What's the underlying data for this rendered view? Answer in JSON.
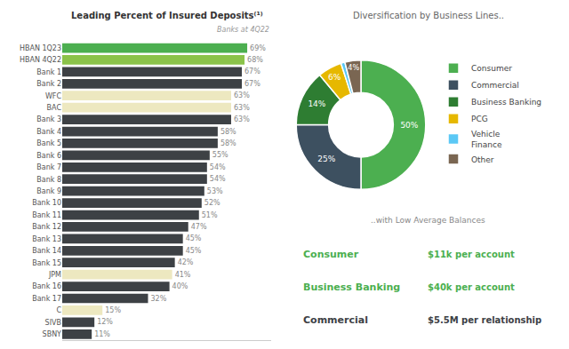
{
  "chart_data": [
    {
      "type": "bar",
      "title": "Leading Percent of Insured Deposits⁽¹⁾",
      "subtitle": "Banks at 4Q22",
      "orientation": "horizontal",
      "categories": [
        "HBAN 1Q23",
        "HBAN 4Q22",
        "Bank 1",
        "Bank 2",
        "WFC",
        "BAC",
        "Bank 3",
        "Bank 4",
        "Bank 5",
        "Bank 6",
        "Bank 7",
        "Bank 8",
        "Bank 9",
        "Bank 10",
        "Bank 11",
        "Bank 12",
        "Bank 13",
        "Bank 14",
        "Bank 15",
        "JPM",
        "Bank 16",
        "Bank 17",
        "C",
        "SIVB",
        "SBNY"
      ],
      "values": [
        69,
        68,
        67,
        67,
        63,
        63,
        63,
        58,
        58,
        55,
        54,
        54,
        53,
        52,
        51,
        47,
        45,
        45,
        42,
        41,
        40,
        32,
        15,
        12,
        11
      ],
      "value_labels": [
        "69%",
        "68%",
        "67%",
        "67%",
        "63%",
        "63%",
        "63%",
        "58%",
        "58%",
        "55%",
        "54%",
        "54%",
        "53%",
        "52%",
        "51%",
        "47%",
        "45%",
        "45%",
        "42%",
        "41%",
        "40%",
        "32%",
        "15%",
        "12%",
        "11%"
      ],
      "data_labels": true,
      "colors": [
        "#4caf50",
        "#8bc34a",
        "#3d4145",
        "#3d4145",
        "#ede8c0",
        "#ede8c0",
        "#3d4145",
        "#3d4145",
        "#3d4145",
        "#3d4145",
        "#3d4145",
        "#3d4145",
        "#3d4145",
        "#3d4145",
        "#3d4145",
        "#3d4145",
        "#3d4145",
        "#3d4145",
        "#3d4145",
        "#ede8c0",
        "#3d4145",
        "#3d4145",
        "#ede8c0",
        "#3d4145",
        "#3d4145"
      ],
      "xlim": [
        0,
        78
      ],
      "tick_labels": "y",
      "grid": false
    },
    {
      "type": "pie",
      "title": "Diversification by Business Lines..",
      "subtitle": "..with Low Average Balances",
      "categories": [
        "Consumer",
        "Commercial",
        "Business Banking",
        "PCG",
        "Vehicle\nFinance",
        "Other"
      ],
      "values": [
        50,
        25,
        14,
        6,
        1,
        4
      ],
      "value_labels": [
        "50%",
        "25%",
        "14%",
        "6%",
        null,
        "4%"
      ],
      "data_labels": true,
      "colors": [
        "#4caf50",
        "#3d5060",
        "#2e7d32",
        "#e6b800",
        "#5bc8f5",
        "#7a6652"
      ],
      "legend": "right",
      "annotations": [
        {
          "text": "Consumer",
          "color": "#4caf50"
        },
        {
          "text": "$11k per account",
          "color": "#4caf50"
        },
        {
          "text": "Business Banking",
          "color": "#4caf50"
        },
        {
          "text": "$40k per account",
          "color": "#4caf50"
        },
        {
          "text": "Commercial",
          "color": "#3d4145"
        },
        {
          "text": "$5.5M per relationship",
          "color": "#3d4145"
        }
      ]
    }
  ]
}
